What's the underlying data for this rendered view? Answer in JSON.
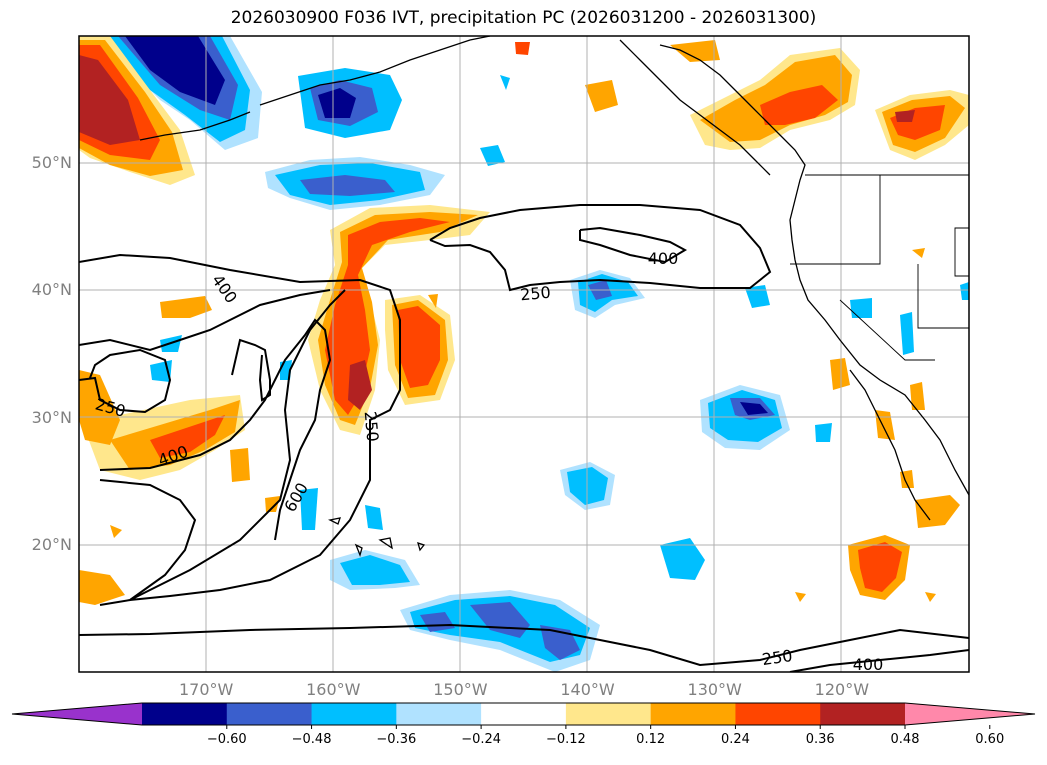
{
  "title": "2026030900 F036 IVT, precipitation PC (2026031200 - 2026031300)",
  "lat_labels": [
    {
      "text": "50°N",
      "lat": 50
    },
    {
      "text": "40°N",
      "lat": 40
    },
    {
      "text": "30°N",
      "lat": 30
    },
    {
      "text": "20°N",
      "lat": 20
    }
  ],
  "lon_labels": [
    {
      "text": "170°W",
      "lon": -170
    },
    {
      "text": "160°W",
      "lon": -160
    },
    {
      "text": "150°W",
      "lon": -150
    },
    {
      "text": "140°W",
      "lon": -140
    },
    {
      "text": "130°W",
      "lon": -130
    },
    {
      "text": "120°W",
      "lon": -120
    }
  ],
  "map_extent": {
    "lon_min": -180,
    "lon_max": -110,
    "lat_min": 10,
    "lat_max": 60
  },
  "colorbar": {
    "levels": [
      "−0.60",
      "−0.48",
      "−0.36",
      "−0.24",
      "−0.12",
      "0.12",
      "0.24",
      "0.36",
      "0.48",
      "0.60"
    ],
    "colors": [
      "#9932cc",
      "#00008b",
      "#3a5fcd",
      "#00bfff",
      "#b0e2ff",
      "#ffffff",
      "#ffe78c",
      "#ffa500",
      "#ff4500",
      "#b22222",
      "#ff88aa"
    ]
  },
  "contour_labels": [
    {
      "text": "400",
      "lon": -168.7,
      "lat": 40.2,
      "rot": 55
    },
    {
      "text": "250",
      "lon": -172.3,
      "lat": 29.1,
      "rot": 15
    },
    {
      "text": "400",
      "lon": -164.7,
      "lat": 23.7,
      "rot": -20
    },
    {
      "text": "600",
      "lon": -158.1,
      "lat": 19.1,
      "rot": -60
    },
    {
      "text": "250",
      "lon": -153.5,
      "lat": 24.6,
      "rot": 85
    },
    {
      "text": "250",
      "lon": -143.5,
      "lat": 39.9,
      "rot": -5
    },
    {
      "text": "400",
      "lon": -125.6,
      "lat": 43.0,
      "rot": 0
    },
    {
      "text": "250",
      "lon": -114.3,
      "lat": 10.9,
      "rot": -8
    },
    {
      "text": "400",
      "lon": -104.0,
      "lat": 10.3,
      "rot": 0
    }
  ]
}
